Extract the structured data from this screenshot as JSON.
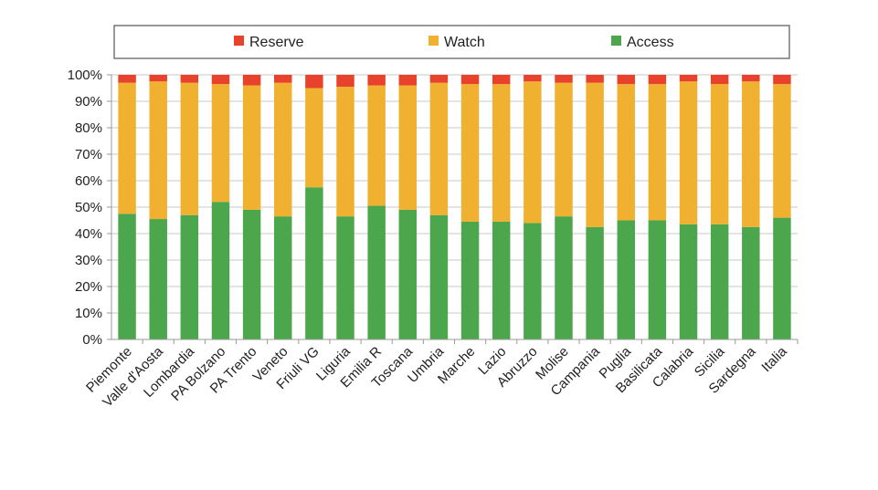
{
  "chart_data": {
    "type": "bar",
    "stacked": true,
    "categories": [
      "Piemonte",
      "Valle d'Aosta",
      "Lombardia",
      "PA Bolzano",
      "PA Trento",
      "Veneto",
      "Friuli VG",
      "Liguria",
      "Emilia R",
      "Toscana",
      "Umbria",
      "Marche",
      "Lazio",
      "Abruzzo",
      "Molise",
      "Campania",
      "Puglia",
      "Basilicata",
      "Calabria",
      "Sicilia",
      "Sardegna",
      "Italia"
    ],
    "series": [
      {
        "name": "Access",
        "color": "#4ca64c",
        "values": [
          47.5,
          45.5,
          47,
          52,
          49,
          46.5,
          57.5,
          46.5,
          50.5,
          49,
          47,
          44.5,
          44.5,
          44,
          46.5,
          42.5,
          45,
          45,
          43.5,
          43.5,
          42.5,
          46
        ]
      },
      {
        "name": "Watch",
        "color": "#f0b030",
        "values": [
          49.5,
          52,
          50,
          44.5,
          47,
          50.5,
          37.5,
          49,
          45.5,
          47,
          50,
          52,
          52,
          53.5,
          50.5,
          54.5,
          51.5,
          51.5,
          54,
          53,
          55,
          50.5
        ]
      },
      {
        "name": "Reserve",
        "color": "#e8412c",
        "values": [
          3,
          2.5,
          3,
          3.5,
          4,
          3,
          5,
          4.5,
          4,
          4,
          3,
          3.5,
          3.5,
          2.5,
          3,
          3,
          3.5,
          3.5,
          2.5,
          3.5,
          2.5,
          3.5
        ]
      }
    ],
    "legend": [
      {
        "name": "Reserve",
        "color": "#e8412c"
      },
      {
        "name": "Watch",
        "color": "#f0b030"
      },
      {
        "name": "Access",
        "color": "#4ca64c"
      }
    ],
    "legend_position": "top",
    "y_ticks": [
      "0%",
      "10%",
      "20%",
      "30%",
      "40%",
      "50%",
      "60%",
      "70%",
      "80%",
      "90%",
      "100%"
    ],
    "ylim": [
      0,
      100
    ],
    "grid": true,
    "title": "",
    "xlabel": "",
    "ylabel": ""
  }
}
